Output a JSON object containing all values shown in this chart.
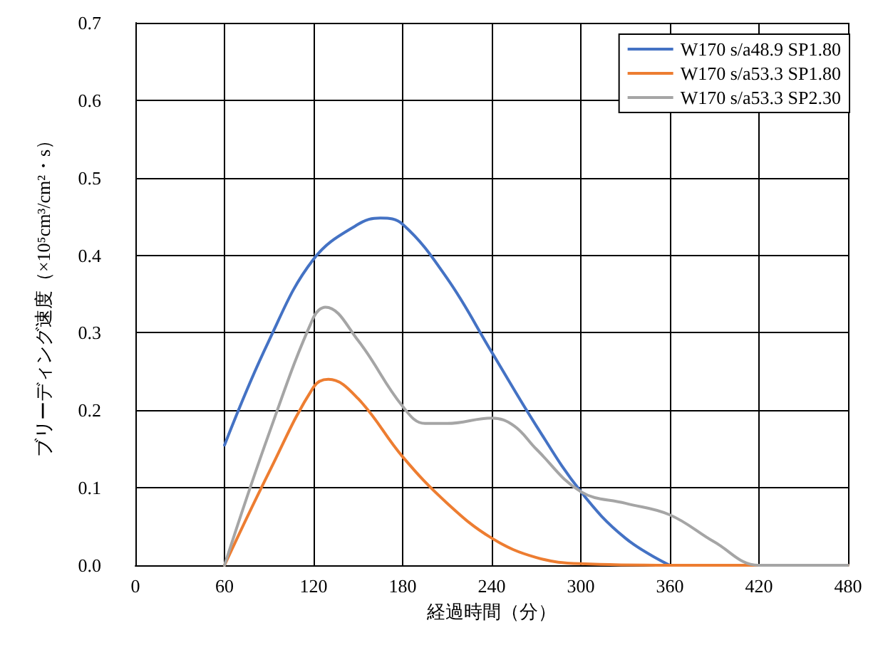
{
  "chart_data": {
    "type": "line",
    "xlabel": "経過時間（分）",
    "ylabel": "ブリーディング速度（×10⁵cm³/cm²・s）",
    "xlim": [
      0,
      480
    ],
    "xticks": [
      0,
      60,
      120,
      180,
      240,
      300,
      360,
      420,
      480
    ],
    "ylim": [
      0,
      0.7
    ],
    "yticks": [
      {
        "value": 0,
        "label": "0.0"
      },
      {
        "value": 0.1,
        "label": "0.1"
      },
      {
        "value": 0.2,
        "label": "0.2"
      },
      {
        "value": 0.3,
        "label": "0.3"
      },
      {
        "value": 0.4,
        "label": "0.4"
      },
      {
        "value": 0.5,
        "label": "0.5"
      },
      {
        "value": 0.6,
        "label": "0.6"
      },
      {
        "value": 0.7,
        "label": "0.7"
      }
    ],
    "grid": true,
    "legend": "top right",
    "marker": "none",
    "line_style": "solid",
    "series": [
      {
        "name": "W170 s/a48.9 SP1.80",
        "color": "#4472c4",
        "x": [
          60,
          90,
          120,
          150,
          165,
          180,
          210,
          240,
          270,
          300,
          330,
          360
        ],
        "values": [
          0.155,
          0.29,
          0.395,
          0.44,
          0.448,
          0.44,
          0.37,
          0.275,
          0.18,
          0.095,
          0.035,
          0
        ]
      },
      {
        "name": "W170 s/a53.3 SP1.80",
        "color": "#ed7d31",
        "x": [
          60,
          90,
          120,
          130,
          150,
          180,
          210,
          240,
          270,
          300,
          360,
          420,
          480
        ],
        "values": [
          0,
          0.12,
          0.23,
          0.24,
          0.215,
          0.14,
          0.08,
          0.035,
          0.01,
          0.002,
          0,
          0,
          0
        ]
      },
      {
        "name": "W170 s/a53.3 SP2.30",
        "color": "#a5a5a5",
        "x": [
          60,
          90,
          120,
          128,
          150,
          180,
          195,
          210,
          240,
          255,
          270,
          300,
          330,
          360,
          390,
          420,
          480
        ],
        "values": [
          0,
          0.17,
          0.32,
          0.333,
          0.29,
          0.205,
          0.183,
          0.183,
          0.19,
          0.18,
          0.15,
          0.095,
          0.08,
          0.065,
          0.03,
          0,
          0
        ]
      }
    ]
  }
}
